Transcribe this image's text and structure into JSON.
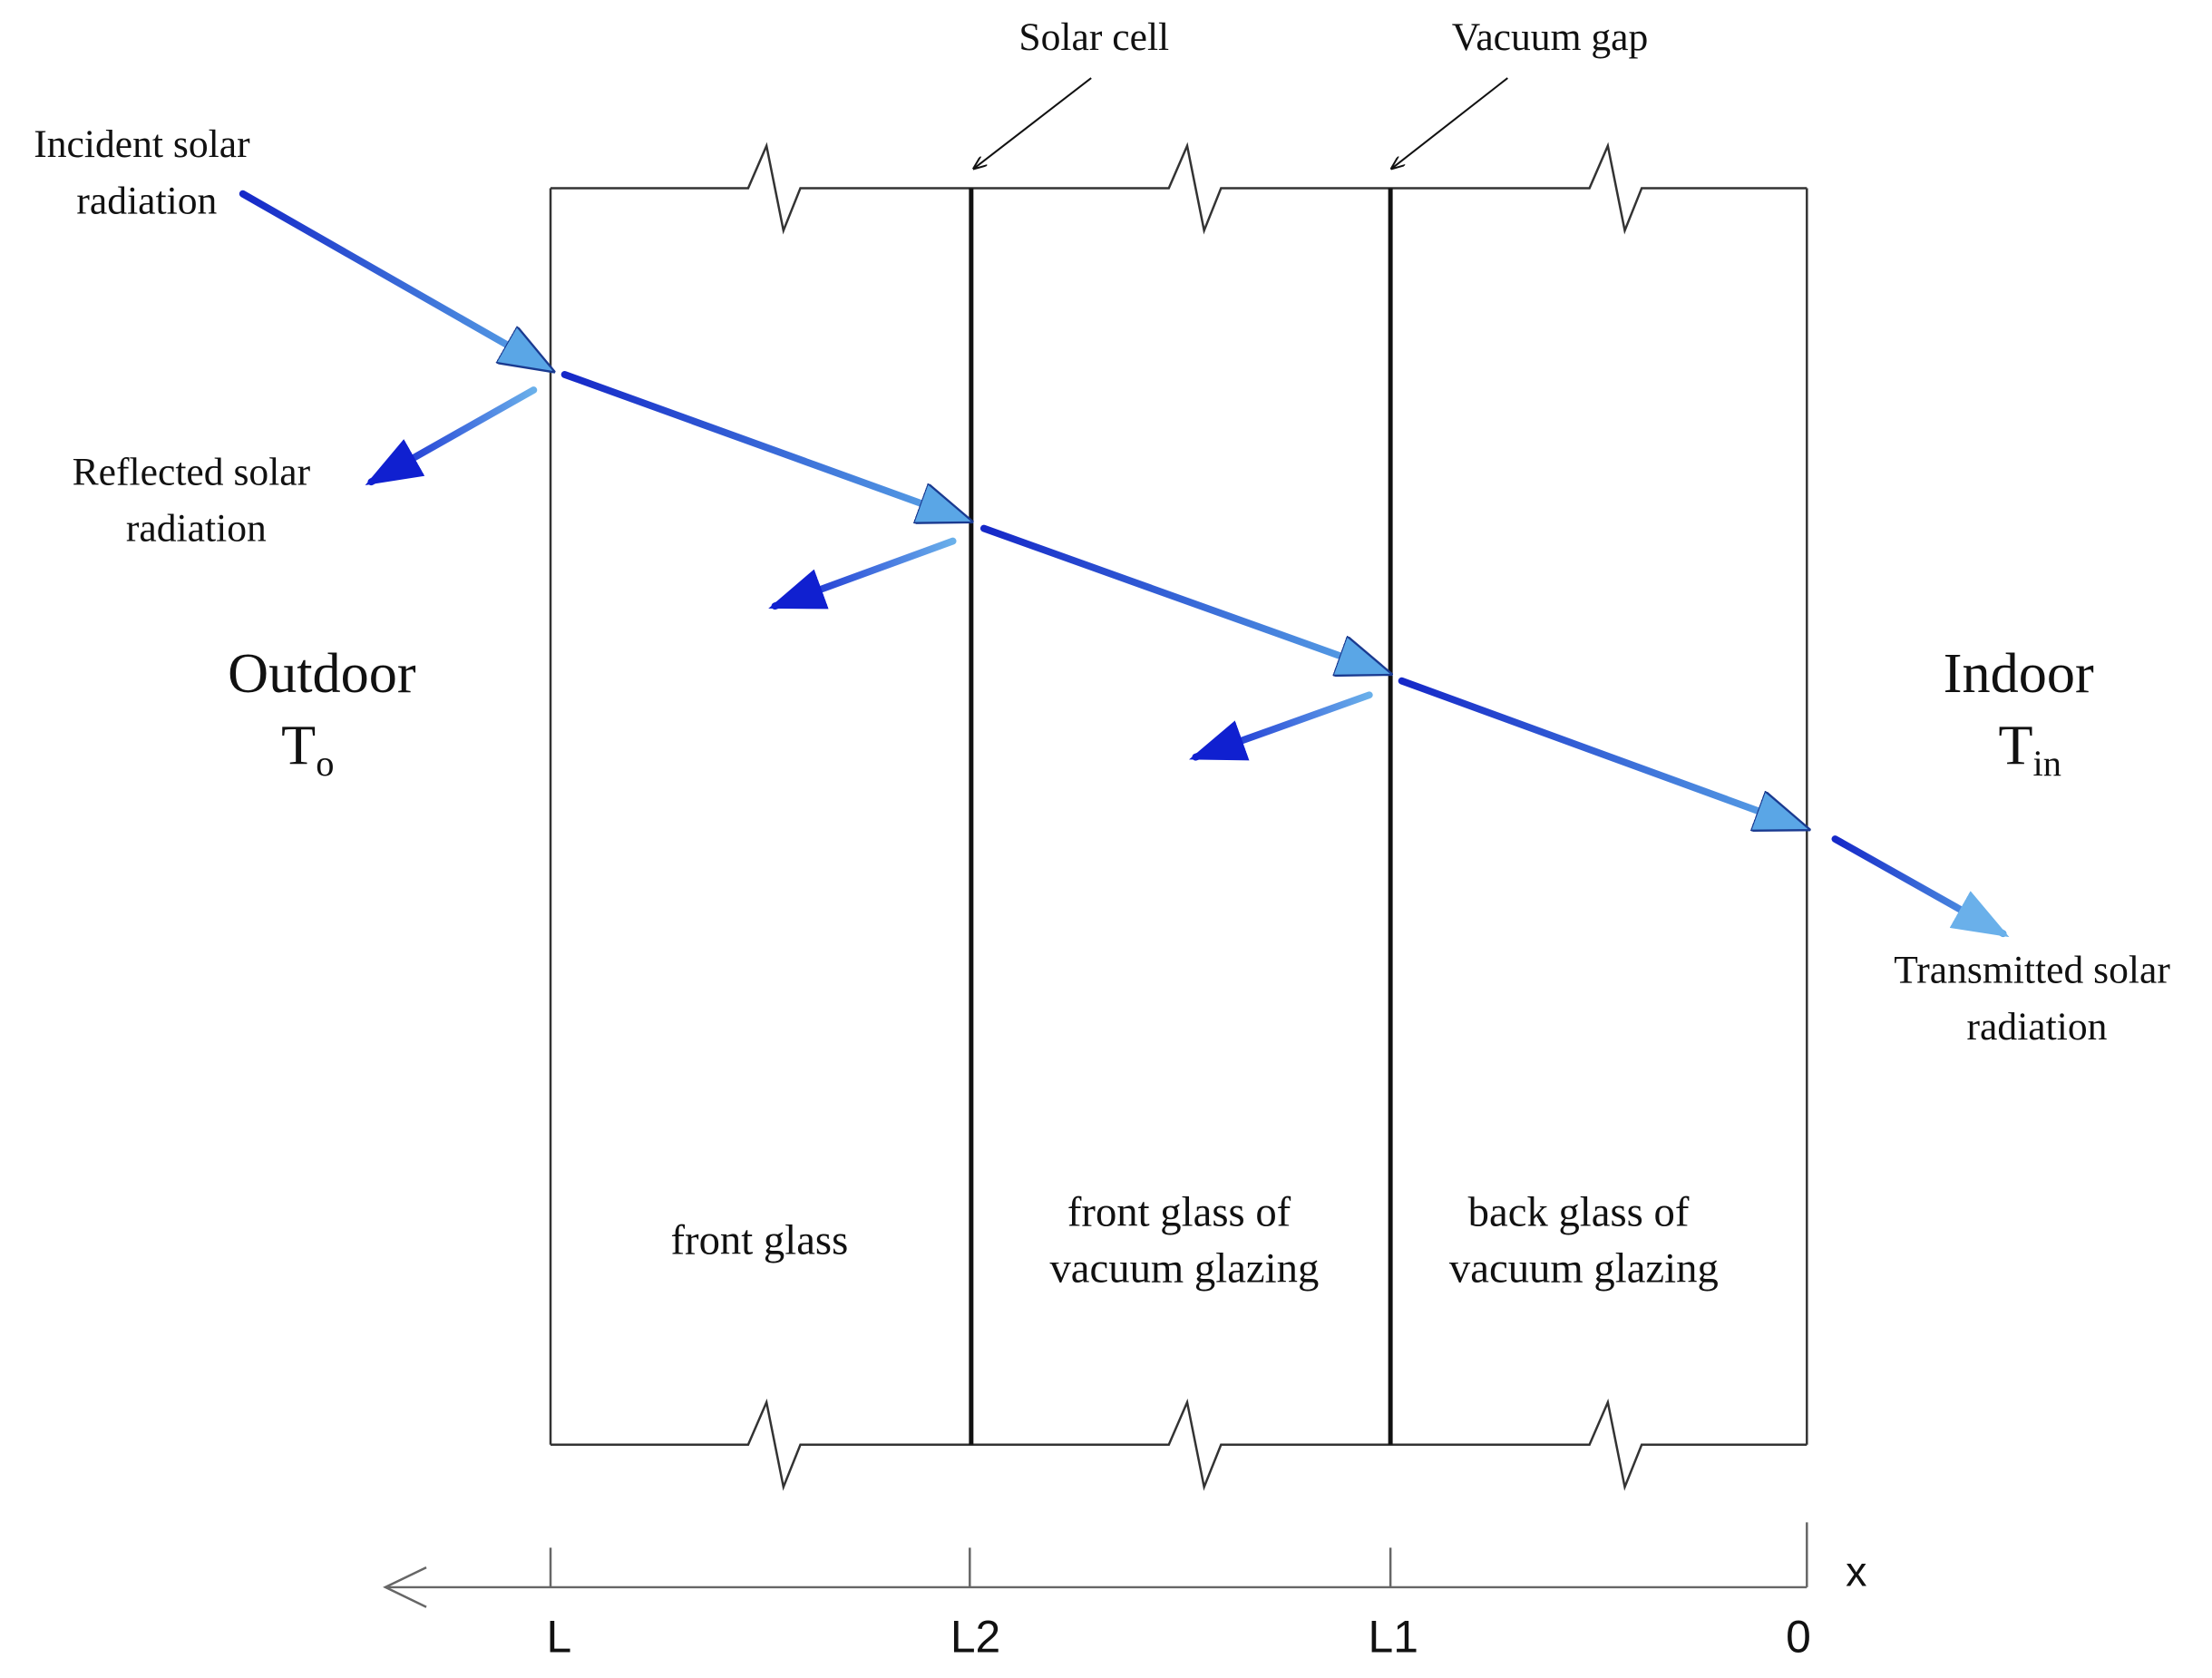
{
  "labels": {
    "solar_cell": "Solar cell",
    "vacuum_gap": "Vacuum gap",
    "incident": [
      "Incident solar",
      "radiation"
    ],
    "reflected": [
      "Reflected solar",
      "radiation"
    ],
    "transmitted": [
      "Transmitted solar",
      "radiation"
    ]
  },
  "outdoor": {
    "label": "Outdoor",
    "symbol": "T",
    "subscript": "o"
  },
  "indoor": {
    "label": "Indoor",
    "symbol": "T",
    "subscript": "in"
  },
  "regions": [
    [
      "front glass"
    ],
    [
      "front glass of",
      "vacuum glazing"
    ],
    [
      "back glass of",
      "vacuum glazing"
    ]
  ],
  "axis": {
    "name": "x",
    "ticks": [
      "L",
      "L2",
      "L1",
      "0"
    ]
  }
}
